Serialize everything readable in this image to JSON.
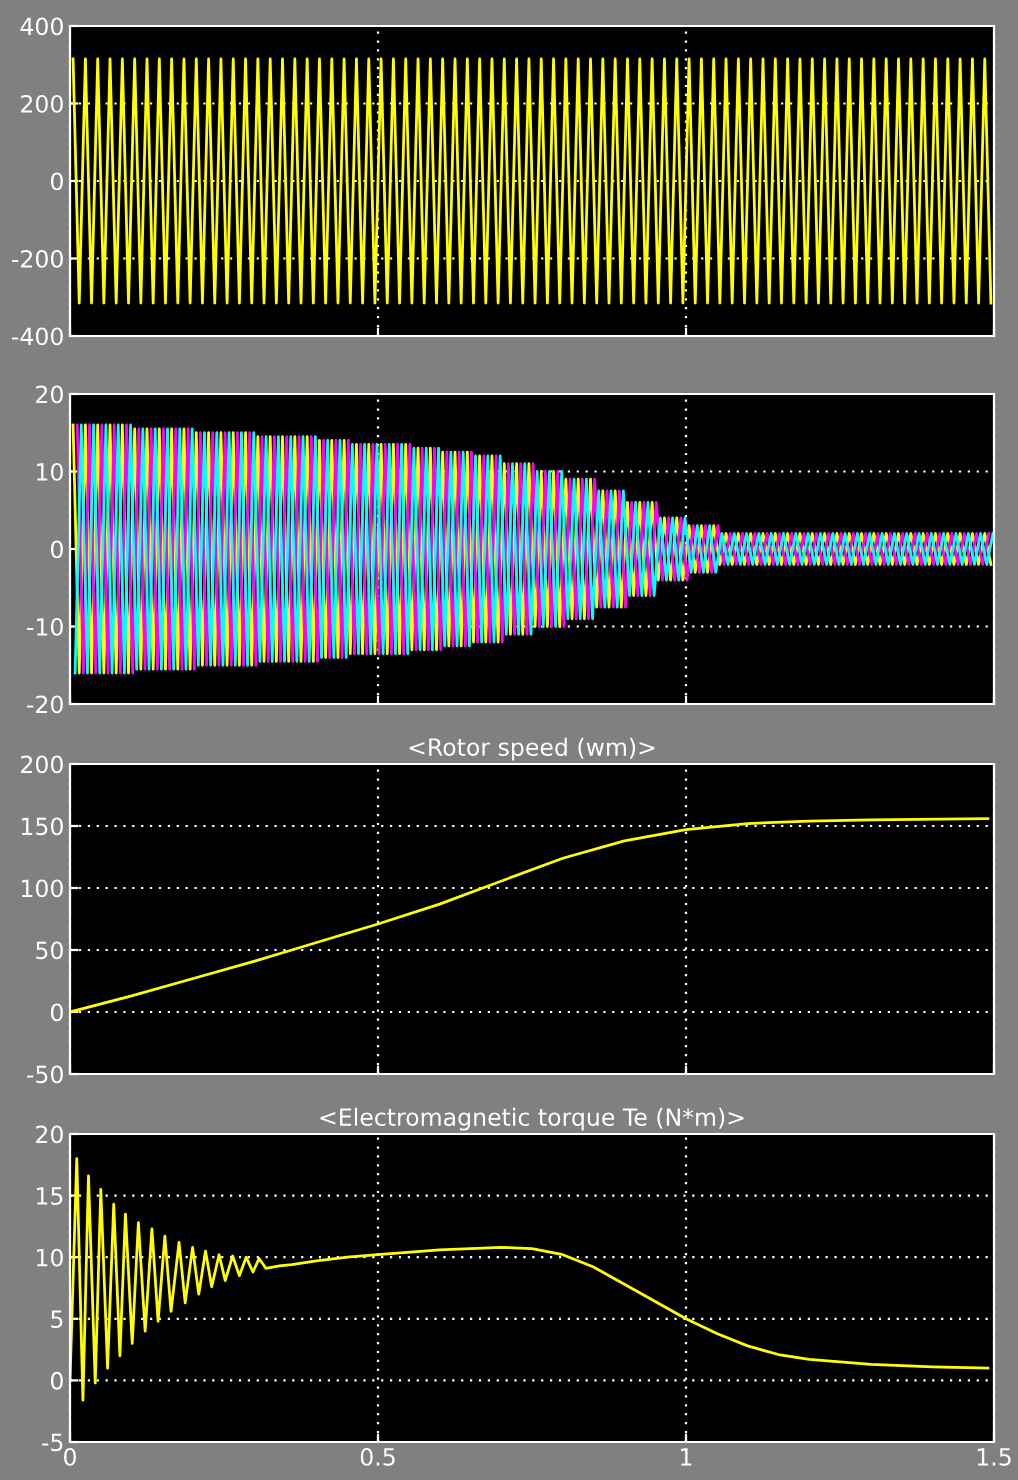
{
  "chart_data": [
    {
      "type": "line",
      "xlim": [
        0,
        1.5
      ],
      "ylim": [
        -400,
        400
      ],
      "yticks": [
        -400,
        -200,
        0,
        200,
        400
      ],
      "grid": true,
      "tick_labels": "y",
      "x": [
        0.005,
        0.015,
        0.025,
        0.035,
        0.045,
        0.055,
        0.065,
        0.075,
        0.085,
        0.095,
        0.105,
        0.115,
        0.125,
        0.135,
        0.145,
        0.155,
        0.165,
        0.175,
        0.185,
        0.195,
        0.205,
        0.215,
        0.225,
        0.235,
        0.245,
        0.255,
        0.265,
        0.275,
        0.285,
        0.295,
        0.305,
        0.315,
        0.325,
        0.335,
        0.345,
        0.355,
        0.365,
        0.375,
        0.385,
        0.395,
        0.405,
        0.415,
        0.425,
        0.435,
        0.445,
        0.455,
        0.465,
        0.475,
        0.485,
        0.495,
        0.505,
        0.515,
        0.525,
        0.535,
        0.545,
        0.555,
        0.565,
        0.575,
        0.585,
        0.595,
        0.605,
        0.615,
        0.625,
        0.635,
        0.645,
        0.655,
        0.665,
        0.675,
        0.685,
        0.695,
        0.705,
        0.715,
        0.725,
        0.735,
        0.745,
        0.755,
        0.765,
        0.775,
        0.785,
        0.795,
        0.805,
        0.815,
        0.825,
        0.835,
        0.845,
        0.855,
        0.865,
        0.875,
        0.885,
        0.895,
        0.905,
        0.915,
        0.925,
        0.935,
        0.945,
        0.955,
        0.965,
        0.975,
        0.985,
        0.995,
        1.005,
        1.015,
        1.025,
        1.035,
        1.045,
        1.055,
        1.065,
        1.075,
        1.085,
        1.095,
        1.105,
        1.115,
        1.125,
        1.135,
        1.145,
        1.155,
        1.165,
        1.175,
        1.185,
        1.195,
        1.205,
        1.215,
        1.225,
        1.235,
        1.245,
        1.255,
        1.265,
        1.275,
        1.285,
        1.295,
        1.305,
        1.315,
        1.325,
        1.335,
        1.345,
        1.355,
        1.365,
        1.375,
        1.385,
        1.395,
        1.405,
        1.415,
        1.425,
        1.435,
        1.445,
        1.455,
        1.465,
        1.475,
        1.485,
        1.495
      ],
      "series": [
        {
          "color": "#ffff00",
          "values": [
            315,
            -315,
            315,
            -315,
            315,
            -315,
            315,
            -315,
            315,
            -315,
            315,
            -315,
            315,
            -315,
            315,
            -315,
            315,
            -315,
            315,
            -315,
            315,
            -315,
            315,
            -315,
            315,
            -315,
            315,
            -315,
            315,
            -315,
            315,
            -315,
            315,
            -315,
            315,
            -315,
            315,
            -315,
            315,
            -315,
            315,
            -315,
            315,
            -315,
            315,
            -315,
            315,
            -315,
            315,
            -315,
            315,
            -315,
            315,
            -315,
            315,
            -315,
            315,
            -315,
            315,
            -315,
            315,
            -315,
            315,
            -315,
            315,
            -315,
            315,
            -315,
            315,
            -315,
            315,
            -315,
            315,
            -315,
            315,
            -315,
            315,
            -315,
            315,
            -315,
            315,
            -315,
            315,
            -315,
            315,
            -315,
            315,
            -315,
            315,
            -315,
            315,
            -315,
            315,
            -315,
            315,
            -315,
            315,
            -315,
            315,
            -315,
            315,
            -315,
            315,
            -315,
            315,
            -315,
            315,
            -315,
            315,
            -315,
            315,
            -315,
            315,
            -315,
            315,
            -315,
            315,
            -315,
            315,
            -315,
            315,
            -315,
            315,
            -315,
            315,
            -315,
            315,
            -315,
            315,
            -315,
            315,
            -315,
            315,
            -315,
            315,
            -315,
            315,
            -315,
            315,
            -315,
            315,
            -315,
            315,
            -315,
            315,
            -315,
            315,
            -315,
            315,
            -315
          ]
        }
      ]
    },
    {
      "type": "line",
      "xlim": [
        0,
        1.5
      ],
      "ylim": [
        -20,
        20
      ],
      "yticks": [
        -20,
        -10,
        0,
        10,
        20
      ],
      "grid": true,
      "tick_labels": "y",
      "x": [
        0.005,
        0.015,
        0.025,
        0.035,
        0.045,
        0.055,
        0.065,
        0.075,
        0.085,
        0.095,
        0.105,
        0.115,
        0.125,
        0.135,
        0.145,
        0.155,
        0.165,
        0.175,
        0.185,
        0.195,
        0.205,
        0.215,
        0.225,
        0.235,
        0.245,
        0.255,
        0.265,
        0.275,
        0.285,
        0.295,
        0.305,
        0.315,
        0.325,
        0.335,
        0.345,
        0.355,
        0.365,
        0.375,
        0.385,
        0.395,
        0.405,
        0.415,
        0.425,
        0.435,
        0.445,
        0.455,
        0.465,
        0.475,
        0.485,
        0.495,
        0.505,
        0.515,
        0.525,
        0.535,
        0.545,
        0.555,
        0.565,
        0.575,
        0.585,
        0.595,
        0.605,
        0.615,
        0.625,
        0.635,
        0.645,
        0.655,
        0.665,
        0.675,
        0.685,
        0.695,
        0.705,
        0.715,
        0.725,
        0.735,
        0.745,
        0.755,
        0.765,
        0.775,
        0.785,
        0.795,
        0.805,
        0.815,
        0.825,
        0.835,
        0.845,
        0.855,
        0.865,
        0.875,
        0.885,
        0.895,
        0.905,
        0.915,
        0.925,
        0.935,
        0.945,
        0.955,
        0.965,
        0.975,
        0.985,
        0.995,
        1.005,
        1.015,
        1.025,
        1.035,
        1.045,
        1.055,
        1.065,
        1.075,
        1.085,
        1.095,
        1.105,
        1.115,
        1.125,
        1.135,
        1.145,
        1.155,
        1.165,
        1.175,
        1.185,
        1.195,
        1.205,
        1.215,
        1.225,
        1.235,
        1.245,
        1.255,
        1.265,
        1.275,
        1.285,
        1.295,
        1.305,
        1.315,
        1.325,
        1.335,
        1.345,
        1.355,
        1.365,
        1.375,
        1.385,
        1.395,
        1.405,
        1.415,
        1.425,
        1.435,
        1.445,
        1.455,
        1.465,
        1.475,
        1.485,
        1.495
      ],
      "series": [
        {
          "color": "#ffff00",
          "values": [
            16,
            -16,
            16,
            -16,
            16,
            -16,
            16,
            -16,
            16,
            -16,
            15.5,
            -15.5,
            15.5,
            -15.5,
            15.5,
            -15.5,
            15.5,
            -15.5,
            15.5,
            -15.5,
            15,
            -15,
            15,
            -15,
            15,
            -15,
            15,
            -15,
            15,
            -15,
            14.5,
            -14.5,
            14.5,
            -14.5,
            14.5,
            -14.5,
            14.5,
            -14.5,
            14.5,
            -14.5,
            14,
            -14,
            14,
            -14,
            14,
            -13.5,
            13.5,
            -13.5,
            13.5,
            -13.5,
            13.5,
            -13.5,
            13.5,
            -13.5,
            13.5,
            -13,
            13,
            -13,
            13,
            -13,
            12.5,
            -12.5,
            12.5,
            -12.5,
            12.5,
            -12,
            12,
            -12,
            12,
            -12,
            11,
            -11,
            11,
            -11,
            11,
            -10,
            10,
            -10,
            10,
            -10,
            9,
            -9,
            9,
            -9,
            9,
            -7.5,
            7.5,
            -7.5,
            7.5,
            -7.5,
            6,
            -6,
            6,
            -6,
            6,
            -4,
            4,
            -4,
            4,
            -4,
            3,
            -3,
            3,
            -3,
            3,
            -2,
            2,
            -2,
            2,
            -2,
            2,
            -2,
            2,
            -2,
            2,
            -2,
            2,
            -2,
            2,
            -2,
            2,
            -2,
            2,
            -2,
            2,
            -2,
            2,
            -2,
            2,
            -2,
            2,
            -2,
            2,
            -2,
            2,
            -2,
            2,
            -2,
            2,
            -2,
            2,
            -2,
            2,
            -2,
            2,
            -2,
            2,
            -2,
            2,
            -2
          ]
        },
        {
          "color": "#ff00ff",
          "x": [
            0.0117,
            0.0217,
            0.0317,
            0.0417,
            0.0517,
            0.0617,
            0.0717,
            0.0817,
            0.0917,
            0.1017,
            0.1117,
            0.1217,
            0.1317,
            0.1417,
            0.1517,
            0.1617,
            0.1717,
            0.1817,
            0.1917,
            0.2017,
            0.2117,
            0.2217,
            0.2317,
            0.2417,
            0.2517,
            0.2617,
            0.2717,
            0.2817,
            0.2917,
            0.3017,
            0.3117,
            0.3217,
            0.3317,
            0.3417,
            0.3517,
            0.3617,
            0.3717,
            0.3817,
            0.3917,
            0.4017,
            0.4117,
            0.4217,
            0.4317,
            0.4417,
            0.4517,
            0.4617,
            0.4717,
            0.4817,
            0.4917,
            0.5017,
            0.5117,
            0.5217,
            0.5317,
            0.5417,
            0.5517,
            0.5617,
            0.5717,
            0.5817,
            0.5917,
            0.6017,
            0.6117,
            0.6217,
            0.6317,
            0.6417,
            0.6517,
            0.6617,
            0.6717,
            0.6817,
            0.6917,
            0.7017,
            0.7117,
            0.7217,
            0.7317,
            0.7417,
            0.7517,
            0.7617,
            0.7717,
            0.7817,
            0.7917,
            0.8017,
            0.8117,
            0.8217,
            0.8317,
            0.8417,
            0.8517,
            0.8617,
            0.8717,
            0.8817,
            0.8917,
            0.9017,
            0.9117,
            0.9217,
            0.9317,
            0.9417,
            0.9517,
            0.9617,
            0.9717,
            0.9817,
            0.9917,
            1.0017,
            1.0117,
            1.0217,
            1.0317,
            1.0417,
            1.0517,
            1.0617,
            1.0717,
            1.0817,
            1.0917,
            1.1017,
            1.1117,
            1.1217,
            1.1317,
            1.1417,
            1.1517,
            1.1617,
            1.1717,
            1.1817,
            1.1917,
            1.2017,
            1.2117,
            1.2217,
            1.2317,
            1.2417,
            1.2517,
            1.2617,
            1.2717,
            1.2817,
            1.2917,
            1.3017,
            1.3117,
            1.3217,
            1.3317,
            1.3417,
            1.3517,
            1.3617,
            1.3717,
            1.3817,
            1.3917,
            1.4017,
            1.4117,
            1.4217,
            1.4317,
            1.4417,
            1.4517,
            1.4617,
            1.4717,
            1.4817,
            1.4917
          ],
          "values": [
            16,
            -16,
            16,
            -16,
            16,
            -16,
            16,
            -16,
            16,
            -16,
            15.5,
            -15.5,
            15.5,
            -15.5,
            15.5,
            -15.5,
            15.5,
            -15.5,
            15.5,
            -15.5,
            15,
            -15,
            15,
            -15,
            15,
            -15,
            15,
            -15,
            15,
            -15,
            14.5,
            -14.5,
            14.5,
            -14.5,
            14.5,
            -14.5,
            14.5,
            -14.5,
            14.5,
            -14.5,
            14,
            -14,
            14,
            -14,
            14,
            -13.5,
            13.5,
            -13.5,
            13.5,
            -13.5,
            13.5,
            -13.5,
            13.5,
            -13.5,
            13.5,
            -13,
            13,
            -13,
            13,
            -13,
            12.5,
            -12.5,
            12.5,
            -12.5,
            12.5,
            -12,
            12,
            -12,
            12,
            -12,
            11,
            -11,
            11,
            -11,
            11,
            -10,
            10,
            -10,
            10,
            -10,
            9,
            -9,
            9,
            -9,
            9,
            -7.5,
            7.5,
            -7.5,
            7.5,
            -7.5,
            6,
            -6,
            6,
            -6,
            6,
            -4,
            4,
            -4,
            4,
            -4,
            3,
            -3,
            3,
            -3,
            3,
            -2,
            2,
            -2,
            2,
            -2,
            2,
            -2,
            2,
            -2,
            2,
            -2,
            2,
            -2,
            2,
            -2,
            2,
            -2,
            2,
            -2,
            2,
            -2,
            2,
            -2,
            2,
            -2,
            2,
            -2,
            2,
            -2,
            2,
            -2,
            2,
            -2,
            2,
            -2,
            2,
            -2,
            2,
            -2,
            2,
            -2,
            2,
            -2,
            2
          ]
        },
        {
          "color": "#00ffff",
          "x": [
            0.0083,
            0.0183,
            0.0283,
            0.0383,
            0.0483,
            0.0583,
            0.0683,
            0.0783,
            0.0883,
            0.0983,
            0.1083,
            0.1183,
            0.1283,
            0.1383,
            0.1483,
            0.1583,
            0.1683,
            0.1783,
            0.1883,
            0.1983,
            0.2083,
            0.2183,
            0.2283,
            0.2383,
            0.2483,
            0.2583,
            0.2683,
            0.2783,
            0.2883,
            0.2983,
            0.3083,
            0.3183,
            0.3283,
            0.3383,
            0.3483,
            0.3583,
            0.3683,
            0.3783,
            0.3883,
            0.3983,
            0.4083,
            0.4183,
            0.4283,
            0.4383,
            0.4483,
            0.4583,
            0.4683,
            0.4783,
            0.4883,
            0.4983,
            0.5083,
            0.5183,
            0.5283,
            0.5383,
            0.5483,
            0.5583,
            0.5683,
            0.5783,
            0.5883,
            0.5983,
            0.6083,
            0.6183,
            0.6283,
            0.6383,
            0.6483,
            0.6583,
            0.6683,
            0.6783,
            0.6883,
            0.6983,
            0.7083,
            0.7183,
            0.7283,
            0.7383,
            0.7483,
            0.7583,
            0.7683,
            0.7783,
            0.7883,
            0.7983,
            0.8083,
            0.8183,
            0.8283,
            0.8383,
            0.8483,
            0.8583,
            0.8683,
            0.8783,
            0.8883,
            0.8983,
            0.9083,
            0.9183,
            0.9283,
            0.9383,
            0.9483,
            0.9583,
            0.9683,
            0.9783,
            0.9883,
            0.9983,
            1.0083,
            1.0183,
            1.0283,
            1.0383,
            1.0483,
            1.0583,
            1.0683,
            1.0783,
            1.0883,
            1.0983,
            1.1083,
            1.1183,
            1.1283,
            1.1383,
            1.1483,
            1.1583,
            1.1683,
            1.1783,
            1.1883,
            1.1983,
            1.2083,
            1.2183,
            1.2283,
            1.2383,
            1.2483,
            1.2583,
            1.2683,
            1.2783,
            1.2883,
            1.2983,
            1.3083,
            1.3183,
            1.3283,
            1.3383,
            1.3483,
            1.3583,
            1.3683,
            1.3783,
            1.3883,
            1.3983,
            1.4083,
            1.4183,
            1.4283,
            1.4383,
            1.4483,
            1.4583,
            1.4683,
            1.4783,
            1.4883,
            1.4983
          ],
          "values": [
            -16,
            16,
            -16,
            16,
            -16,
            16,
            -16,
            16,
            -16,
            16,
            -15.5,
            15.5,
            -15.5,
            15.5,
            -15.5,
            15.5,
            -15.5,
            15.5,
            -15.5,
            15.5,
            -15,
            15,
            -15,
            15,
            -15,
            15,
            -15,
            15,
            -15,
            15,
            -14.5,
            14.5,
            -14.5,
            14.5,
            -14.5,
            14.5,
            -14.5,
            14.5,
            -14.5,
            14.5,
            -14,
            14,
            -14,
            14,
            -14,
            13.5,
            -13.5,
            13.5,
            -13.5,
            13.5,
            -13.5,
            13.5,
            -13.5,
            13.5,
            -13.5,
            13,
            -13,
            13,
            -13,
            13,
            -12.5,
            12.5,
            -12.5,
            12.5,
            -12.5,
            12,
            -12,
            12,
            -12,
            12,
            -11,
            11,
            -11,
            11,
            -11,
            10,
            -10,
            10,
            -10,
            10,
            -9,
            9,
            -9,
            9,
            -9,
            7.5,
            -7.5,
            7.5,
            -7.5,
            7.5,
            -6,
            6,
            -6,
            6,
            -6,
            4,
            -4,
            4,
            -4,
            4,
            -3,
            3,
            -3,
            3,
            -3,
            2,
            -2,
            2,
            -2,
            2,
            -2,
            2,
            -2,
            2,
            -2,
            2,
            -2,
            2,
            -2,
            2,
            -2,
            2,
            -2,
            2,
            -2,
            2,
            -2,
            2,
            -2,
            2,
            -2,
            2,
            -2,
            2,
            -2,
            2,
            -2,
            2,
            -2,
            2,
            -2,
            2,
            -2,
            2,
            -2,
            2,
            -2,
            2,
            -2,
            2
          ]
        }
      ]
    },
    {
      "type": "line",
      "title": "<Rotor speed (wm)>",
      "xlim": [
        0,
        1.5
      ],
      "ylim": [
        -50,
        200
      ],
      "yticks": [
        -50,
        0,
        50,
        100,
        150,
        200
      ],
      "grid": true,
      "tick_labels": "y",
      "series": [
        {
          "color": "#ffff00",
          "x": [
            0,
            0.1,
            0.2,
            0.3,
            0.36,
            0.5,
            0.6,
            0.67,
            0.8,
            0.9,
            1.0,
            1.1,
            1.2,
            1.3,
            1.49
          ],
          "values": [
            0,
            13,
            27,
            41,
            50,
            71,
            87,
            100,
            124,
            138,
            147,
            152,
            154,
            155,
            156
          ]
        }
      ]
    },
    {
      "type": "line",
      "title": "<Electromagnetic torque Te (N*m)>",
      "xlim": [
        0,
        1.5
      ],
      "xticks": [
        0,
        {
          "value": 0.5,
          "label": "0.5"
        },
        1,
        {
          "value": 1.5,
          "label": "1.5"
        }
      ],
      "ylim": [
        -5,
        20
      ],
      "yticks": [
        -5,
        0,
        5,
        10,
        15,
        20
      ],
      "grid": true,
      "series": [
        {
          "color": "#ffff00",
          "x": [
            0,
            0.011,
            0.021,
            0.03,
            0.041,
            0.05,
            0.061,
            0.071,
            0.081,
            0.09,
            0.101,
            0.111,
            0.122,
            0.133,
            0.143,
            0.154,
            0.164,
            0.177,
            0.187,
            0.199,
            0.209,
            0.22,
            0.23,
            0.242,
            0.252,
            0.264,
            0.275,
            0.286,
            0.297,
            0.307,
            0.318,
            0.34,
            0.36,
            0.4,
            0.45,
            0.5,
            0.6,
            0.7,
            0.75,
            0.8,
            0.85,
            0.9,
            0.95,
            1.0,
            1.05,
            1.1,
            1.15,
            1.2,
            1.3,
            1.4,
            1.49
          ],
          "values": [
            0,
            18,
            -1.6,
            16.6,
            -0.2,
            15.5,
            1,
            14.3,
            2,
            13.5,
            3,
            12.8,
            4,
            12.3,
            4.8,
            11.7,
            5.6,
            11.2,
            6.3,
            10.8,
            7,
            10.5,
            7.6,
            10.2,
            8.1,
            10.1,
            8.5,
            10,
            8.8,
            9.9,
            9.1,
            9.3,
            9.4,
            9.7,
            10,
            10.2,
            10.6,
            10.8,
            10.7,
            10.2,
            9.2,
            7.8,
            6.4,
            5,
            3.8,
            2.8,
            2.1,
            1.7,
            1.3,
            1.1,
            1
          ]
        }
      ]
    }
  ]
}
